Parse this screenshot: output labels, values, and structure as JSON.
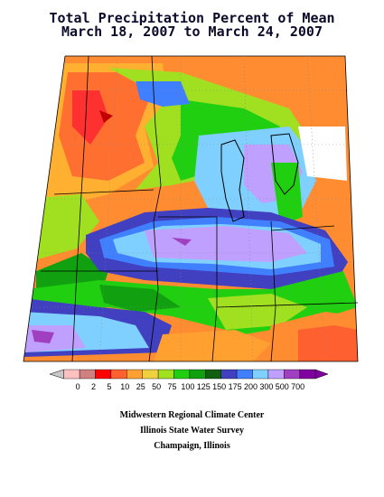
{
  "title": {
    "line1": "Total Precipitation Percent of Mean",
    "line2": "March 18, 2007 to March 24, 2007"
  },
  "legend": {
    "labels": [
      "0",
      "2",
      "5",
      "10",
      "25",
      "50",
      "75",
      "100",
      "125",
      "150",
      "175",
      "200",
      "300",
      "500",
      "700"
    ],
    "colors": [
      "#ffc0c0",
      "#d08080",
      "#ff0000",
      "#ff6030",
      "#ffa030",
      "#f0d040",
      "#a0e020",
      "#20d010",
      "#10a010",
      "#106010",
      "#4040c0",
      "#4080ff",
      "#80d0ff",
      "#c0a0ff",
      "#a040c0",
      "#8000a0"
    ],
    "under_color": "#c8c8c8",
    "over_color": "#8000a0"
  },
  "credits": {
    "line1": "Midwestern Regional Climate Center",
    "line2": "Illinois State Water Survey",
    "line3": "Champaign, Illinois"
  }
}
